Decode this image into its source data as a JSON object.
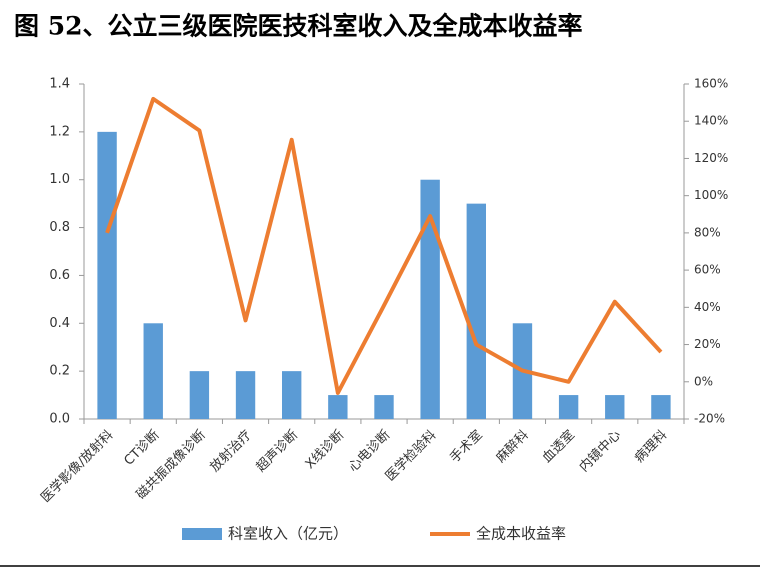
{
  "chart_data": {
    "type": "bar_line",
    "title": "图 52、公立三级医院医技科室收入及全成本收益率",
    "categories": [
      "医学影像/放射科",
      "CT诊断",
      "磁共振成像诊断",
      "放射治疗",
      "超声诊断",
      "X线诊断",
      "心电诊断",
      "医学检验科",
      "手术室",
      "麻醉科",
      "血透室",
      "内镜中心",
      "病理科"
    ],
    "series": [
      {
        "name": "科室收入（亿元）",
        "type": "bar",
        "color": "#5b9bd5",
        "values": [
          1.2,
          0.4,
          0.2,
          0.2,
          0.2,
          0.1,
          0.1,
          1.0,
          0.9,
          0.4,
          0.1,
          0.1,
          0.1
        ]
      },
      {
        "name": "全成本收益率",
        "type": "line",
        "axis": "y2",
        "color": "#ed7d31",
        "values": [
          80,
          152,
          135,
          33,
          130,
          -6,
          41,
          89,
          20,
          6,
          0,
          43,
          16
        ]
      }
    ],
    "ylim": [
      0,
      1.4
    ],
    "yticks": [
      {
        "value": 0,
        "label": "0.0"
      },
      0.2,
      0.4,
      0.6,
      0.8,
      {
        "value": 1.0,
        "label": "1.0"
      },
      1.2,
      1.4
    ],
    "y2lim": [
      -20,
      160
    ],
    "y2ticks": [
      {
        "value": -20,
        "label": "-20%"
      },
      {
        "value": 0,
        "label": "0%"
      },
      {
        "value": 20,
        "label": "20%"
      },
      {
        "value": 40,
        "label": "40%"
      },
      {
        "value": 60,
        "label": "60%"
      },
      {
        "value": 80,
        "label": "80%"
      },
      {
        "value": 100,
        "label": "100%"
      },
      {
        "value": 120,
        "label": "120%"
      },
      {
        "value": 140,
        "label": "140%"
      },
      {
        "value": 160,
        "label": "160%"
      }
    ],
    "legend": "bottom"
  }
}
